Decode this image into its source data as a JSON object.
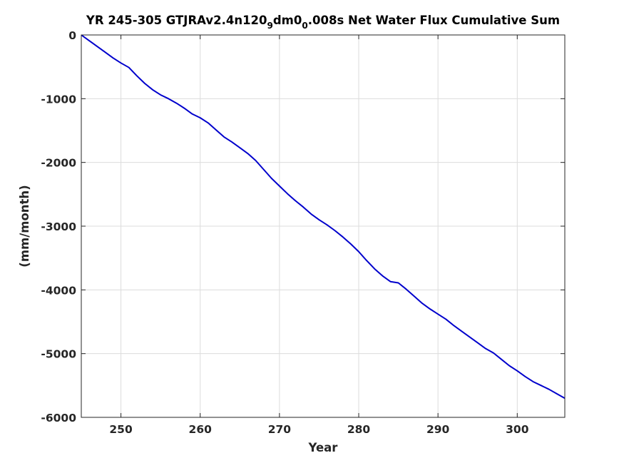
{
  "chart_data": {
    "type": "line",
    "title": {
      "pre": "YR 245-305 GTJRAv2.4n120",
      "sub1": "9",
      "mid": "dm0",
      "sub2": "0",
      "post": ".008s Net Water Flux Cumulative Sum"
    },
    "xlabel": "Year",
    "ylabel": "(mm/month)",
    "xlim": [
      245,
      306
    ],
    "ylim": [
      -6000,
      0
    ],
    "xticks": [
      250,
      260,
      270,
      280,
      290,
      300
    ],
    "yticks": [
      0,
      -1000,
      -2000,
      -3000,
      -4000,
      -5000,
      -6000
    ],
    "grid": true,
    "series": [
      {
        "color": "#0000cc",
        "x": [
          245,
          246,
          247,
          248,
          249,
          250,
          251,
          252,
          253,
          254,
          255,
          256,
          257,
          258,
          259,
          260,
          261,
          262,
          263,
          264,
          265,
          266,
          267,
          268,
          269,
          270,
          271,
          272,
          273,
          274,
          275,
          276,
          277,
          278,
          279,
          280,
          281,
          282,
          283,
          284,
          285,
          286,
          287,
          288,
          289,
          290,
          291,
          292,
          293,
          294,
          295,
          296,
          297,
          298,
          299,
          300,
          301,
          302,
          303,
          304,
          305,
          306
        ],
        "y": [
          0,
          -90,
          -180,
          -270,
          -360,
          -440,
          -510,
          -640,
          -760,
          -860,
          -940,
          -1000,
          -1070,
          -1150,
          -1240,
          -1300,
          -1380,
          -1490,
          -1600,
          -1680,
          -1770,
          -1860,
          -1970,
          -2110,
          -2250,
          -2370,
          -2490,
          -2600,
          -2700,
          -2810,
          -2900,
          -2980,
          -3070,
          -3170,
          -3280,
          -3400,
          -3540,
          -3670,
          -3780,
          -3870,
          -3890,
          -3990,
          -4100,
          -4210,
          -4300,
          -4380,
          -4460,
          -4560,
          -4650,
          -4740,
          -4830,
          -4920,
          -4990,
          -5090,
          -5190,
          -5270,
          -5360,
          -5440,
          -5500,
          -5560,
          -5630,
          -5700
        ]
      }
    ]
  }
}
